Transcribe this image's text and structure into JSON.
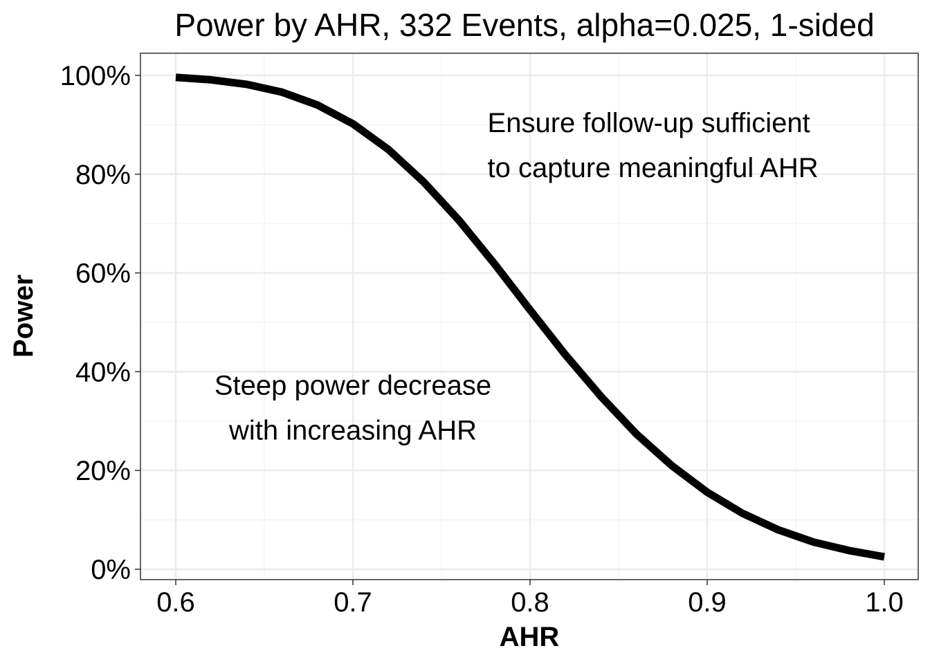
{
  "chart_data": {
    "type": "line",
    "title": "Power by AHR, 332 Events, alpha=0.025, 1-sided",
    "xlabel": "AHR",
    "ylabel": "Power",
    "xlim": [
      0.6,
      1.0
    ],
    "ylim": [
      0,
      100
    ],
    "x_ticks": [
      "0.6",
      "0.7",
      "0.8",
      "0.9",
      "1.0"
    ],
    "y_ticks": [
      "0%",
      "20%",
      "40%",
      "60%",
      "80%",
      "100%"
    ],
    "grid": true,
    "series": [
      {
        "color": "#000000",
        "x": [
          0.6,
          0.62,
          0.64,
          0.66,
          0.68,
          0.7,
          0.72,
          0.74,
          0.76,
          0.78,
          0.8,
          0.82,
          0.84,
          0.86,
          0.88,
          0.9,
          0.92,
          0.94,
          0.96,
          0.98,
          1.0
        ],
        "y": [
          99.6,
          99.1,
          98.2,
          96.6,
          94.0,
          90.2,
          85.0,
          78.4,
          70.6,
          61.8,
          52.5,
          43.4,
          35.0,
          27.4,
          21.0,
          15.6,
          11.3,
          8.0,
          5.5,
          3.8,
          2.5
        ]
      }
    ],
    "annotations": [
      {
        "lines": [
          "Ensure follow-up sufficient",
          "to capture meaningful AHR"
        ],
        "x": 0.776,
        "y": 85.9,
        "align": "start"
      },
      {
        "lines": [
          "Steep power decrease",
          "with increasing AHR"
        ],
        "x": 0.7,
        "y": 32.8,
        "align": "middle"
      }
    ]
  }
}
